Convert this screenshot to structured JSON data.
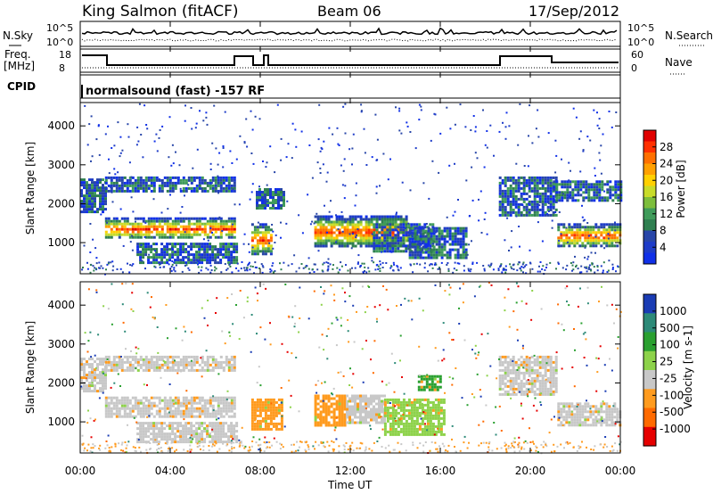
{
  "header": {
    "station": "King Salmon (fitACF)",
    "beam": "Beam 06",
    "date": "17/Sep/2012"
  },
  "labels": {
    "nsky": "N.Sky",
    "nsearch": "N.Search",
    "freq": "Freq.",
    "freq_unit": "[MHz]",
    "nave": "Nave",
    "cpid": "CPID",
    "cpid_text": "normalsound (fast) -157 RF",
    "range_label": "Slant Range [km]",
    "xlabel": "Time UT"
  },
  "noise_ticks": {
    "left": [
      "10^5",
      "10^0"
    ],
    "right": [
      "10^5",
      "10^0"
    ]
  },
  "freq_ticks": {
    "left": [
      "18",
      "8"
    ],
    "right": [
      "60",
      "0"
    ]
  },
  "colorbars": {
    "power": {
      "title": "Power [dB]",
      "ticks": [
        "28",
        "24",
        "20",
        "16",
        "12",
        "8",
        "4"
      ],
      "colors": [
        "#e00000",
        "#ff3000",
        "#ff7000",
        "#ffa000",
        "#ffd000",
        "#c8dc2a",
        "#7dbe3c",
        "#3f9b5a",
        "#2f7f50",
        "#2846a8",
        "#1e3cc8",
        "#1030e8"
      ]
    },
    "velocity": {
      "title": "Velocity [m s-1]",
      "ticks": [
        "1000",
        "500",
        "100",
        "25",
        "-25",
        "-100",
        "-500",
        "-1000"
      ],
      "colors": [
        "#1a3cb4",
        "#2d8a78",
        "#2aa030",
        "#8dd24a",
        "#c8c8c8",
        "#ff9b1e",
        "#ff6a00",
        "#e60000"
      ]
    }
  },
  "chart_data": {
    "type": "heatmap",
    "x": [
      "00:00",
      "04:00",
      "08:00",
      "12:00",
      "16:00",
      "20:00",
      "00:00"
    ],
    "xlim": [
      0,
      24
    ],
    "ylim": [
      200,
      4600
    ],
    "yticks": [
      1000,
      2000,
      3000,
      4000
    ],
    "panels": [
      {
        "name": "power",
        "bands": [
          [
            0.0,
            1.1,
            1800,
            2650,
            1
          ],
          [
            1.1,
            6.9,
            1100,
            1650,
            0
          ],
          [
            1.1,
            6.9,
            2300,
            2700,
            1
          ],
          [
            2.5,
            7.0,
            500,
            1000,
            1
          ],
          [
            7.6,
            8.5,
            700,
            1500,
            0
          ],
          [
            7.8,
            9.0,
            1900,
            2400,
            1
          ],
          [
            10.4,
            14.5,
            900,
            1700,
            0
          ],
          [
            13.0,
            15.7,
            800,
            1500,
            1
          ],
          [
            14.6,
            17.2,
            600,
            1400,
            1
          ],
          [
            18.6,
            21.2,
            1700,
            2700,
            1
          ],
          [
            21.2,
            24.0,
            900,
            1500,
            0
          ],
          [
            21.0,
            24.0,
            2100,
            2600,
            1
          ]
        ]
      },
      {
        "name": "velocity",
        "bands": [
          [
            0.0,
            1.1,
            1800,
            2650,
            4
          ],
          [
            1.1,
            6.9,
            1100,
            1650,
            4
          ],
          [
            1.1,
            6.9,
            2300,
            2700,
            4
          ],
          [
            2.5,
            7.0,
            500,
            1000,
            4
          ],
          [
            7.6,
            9.0,
            800,
            1600,
            5
          ],
          [
            10.4,
            11.8,
            900,
            1700,
            5
          ],
          [
            11.8,
            13.5,
            1000,
            1700,
            4
          ],
          [
            13.5,
            16.2,
            700,
            1600,
            3
          ],
          [
            15.0,
            16.0,
            1800,
            2200,
            2
          ],
          [
            18.6,
            21.2,
            1700,
            2700,
            4
          ],
          [
            21.2,
            24.0,
            900,
            1500,
            4
          ]
        ]
      }
    ]
  }
}
